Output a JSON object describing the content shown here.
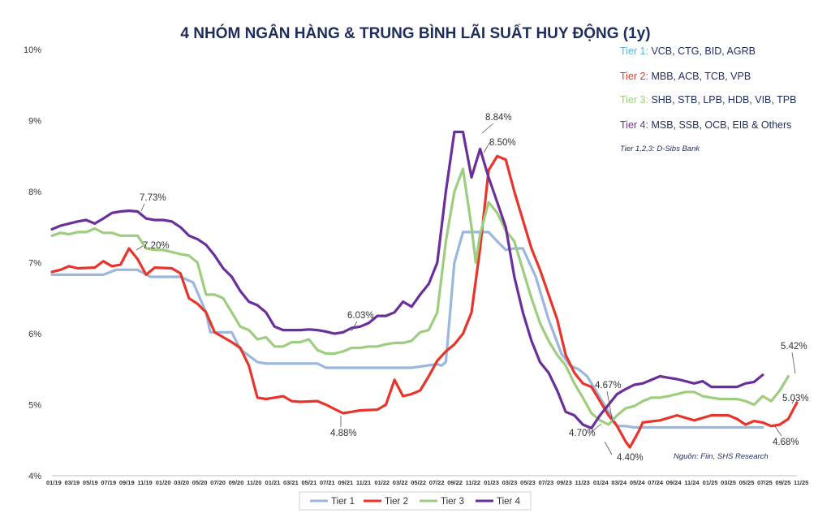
{
  "chart_data": {
    "type": "line",
    "title": "4 NHÓM NGÂN HÀNG & TRUNG BÌNH LÃI SUẤT HUY ĐỘNG (1y)",
    "xlabel": "",
    "ylabel": "",
    "ylim": [
      4,
      10
    ],
    "yticks": [
      "4%",
      "5%",
      "6%",
      "7%",
      "8%",
      "9%",
      "10%"
    ],
    "ytick_values": [
      4,
      5,
      6,
      7,
      8,
      9,
      10
    ],
    "x_tick_labels": [
      "01/19",
      "03/19",
      "05/19",
      "07/19",
      "09/19",
      "11/19",
      "01/20",
      "03/20",
      "05/20",
      "07/20",
      "09/20",
      "11/20",
      "01/21",
      "03/21",
      "05/21",
      "07/21",
      "09/21",
      "11/21",
      "01/22",
      "03/22",
      "05/22",
      "07/22",
      "09/22",
      "11/22",
      "01/23",
      "03/23",
      "05/23",
      "07/23",
      "09/23",
      "11/23",
      "01/24",
      "03/24",
      "05/24",
      "07/24",
      "09/24",
      "11/24",
      "01/25",
      "03/25",
      "05/25",
      "07/25",
      "09/25",
      "11/25"
    ],
    "x_range": [
      0,
      83
    ],
    "series": [
      {
        "name": "Tier 1",
        "color": "#9ab8de",
        "points": [
          [
            0,
            6.83
          ],
          [
            6,
            6.83
          ],
          [
            7.5,
            6.9
          ],
          [
            10,
            6.9
          ],
          [
            11.5,
            6.8
          ],
          [
            15,
            6.8
          ],
          [
            16.5,
            6.72
          ],
          [
            18,
            6.3
          ],
          [
            18.5,
            6.02
          ],
          [
            21,
            6.02
          ],
          [
            22,
            5.78
          ],
          [
            24,
            5.6
          ],
          [
            25,
            5.58
          ],
          [
            31,
            5.58
          ],
          [
            32,
            5.52
          ],
          [
            42,
            5.52
          ],
          [
            45,
            5.57
          ],
          [
            45.5,
            5.55
          ],
          [
            46,
            5.6
          ],
          [
            47,
            7.0
          ],
          [
            48,
            7.43
          ],
          [
            51,
            7.43
          ],
          [
            52,
            7.3
          ],
          [
            53,
            7.18
          ],
          [
            54,
            7.2
          ],
          [
            55,
            7.2
          ],
          [
            56.5,
            6.8
          ],
          [
            58,
            6.2
          ],
          [
            59.5,
            5.72
          ],
          [
            60.5,
            5.55
          ],
          [
            61.5,
            5.5
          ],
          [
            62.5,
            5.4
          ],
          [
            63.5,
            5.2
          ],
          [
            64.5,
            5.0
          ],
          [
            65.5,
            4.8
          ],
          [
            66,
            4.7
          ],
          [
            67,
            4.7
          ],
          [
            68,
            4.68
          ],
          [
            83,
            4.68
          ]
        ]
      },
      {
        "name": "Tier 2",
        "color": "#e8342a",
        "points": [
          [
            0,
            6.87
          ],
          [
            1,
            6.9
          ],
          [
            2,
            6.95
          ],
          [
            3,
            6.92
          ],
          [
            5,
            6.93
          ],
          [
            6,
            7.02
          ],
          [
            7,
            6.95
          ],
          [
            8,
            6.97
          ],
          [
            9,
            7.2
          ],
          [
            10,
            7.05
          ],
          [
            11,
            6.83
          ],
          [
            12,
            6.93
          ],
          [
            14,
            6.92
          ],
          [
            15,
            6.85
          ],
          [
            16,
            6.5
          ],
          [
            17,
            6.42
          ],
          [
            18,
            6.3
          ],
          [
            19,
            6.02
          ],
          [
            20,
            5.95
          ],
          [
            21,
            5.88
          ],
          [
            22,
            5.8
          ],
          [
            23,
            5.55
          ],
          [
            24,
            5.1
          ],
          [
            25,
            5.08
          ],
          [
            26,
            5.1
          ],
          [
            27,
            5.12
          ],
          [
            28,
            5.05
          ],
          [
            29,
            5.04
          ],
          [
            31,
            5.05
          ],
          [
            32,
            5.0
          ],
          [
            33,
            4.94
          ],
          [
            34,
            4.88
          ],
          [
            35,
            4.9
          ],
          [
            36,
            4.92
          ],
          [
            38,
            4.93
          ],
          [
            39,
            5.0
          ],
          [
            40,
            5.35
          ],
          [
            41,
            5.12
          ],
          [
            42,
            5.15
          ],
          [
            43,
            5.2
          ],
          [
            44,
            5.4
          ],
          [
            45,
            5.62
          ],
          [
            46,
            5.75
          ],
          [
            47,
            5.85
          ],
          [
            48,
            6.0
          ],
          [
            49,
            6.3
          ],
          [
            50,
            7.2
          ],
          [
            51,
            8.3
          ],
          [
            52,
            8.5
          ],
          [
            53,
            8.45
          ],
          [
            54,
            8.0
          ],
          [
            55,
            7.6
          ],
          [
            56,
            7.2
          ],
          [
            57,
            6.9
          ],
          [
            58,
            6.55
          ],
          [
            59,
            6.2
          ],
          [
            60,
            5.7
          ],
          [
            61,
            5.45
          ],
          [
            62,
            5.3
          ],
          [
            63,
            5.25
          ],
          [
            64,
            5.05
          ],
          [
            65,
            4.85
          ],
          [
            66,
            4.7
          ],
          [
            67,
            4.48
          ],
          [
            67.5,
            4.4
          ],
          [
            68.5,
            4.62
          ],
          [
            69,
            4.75
          ],
          [
            71,
            4.78
          ],
          [
            73,
            4.85
          ],
          [
            75,
            4.78
          ],
          [
            77,
            4.85
          ],
          [
            79,
            4.85
          ],
          [
            80,
            4.8
          ],
          [
            81,
            4.72
          ],
          [
            82,
            4.77
          ],
          [
            83,
            4.75
          ],
          [
            84,
            4.7
          ],
          [
            85,
            4.72
          ],
          [
            86,
            4.8
          ],
          [
            87,
            5.03
          ]
        ]
      },
      {
        "name": "Tier 3",
        "color": "#9fcd7f",
        "points": [
          [
            0,
            7.38
          ],
          [
            1,
            7.42
          ],
          [
            2,
            7.4
          ],
          [
            3,
            7.43
          ],
          [
            4,
            7.43
          ],
          [
            5,
            7.48
          ],
          [
            6,
            7.42
          ],
          [
            7,
            7.42
          ],
          [
            8,
            7.38
          ],
          [
            9,
            7.38
          ],
          [
            10,
            7.38
          ],
          [
            11,
            7.2
          ],
          [
            12,
            7.18
          ],
          [
            13,
            7.18
          ],
          [
            14,
            7.15
          ],
          [
            15,
            7.12
          ],
          [
            16,
            7.1
          ],
          [
            17,
            7.0
          ],
          [
            18,
            6.55
          ],
          [
            19,
            6.55
          ],
          [
            20,
            6.5
          ],
          [
            21,
            6.3
          ],
          [
            22,
            6.1
          ],
          [
            23,
            6.05
          ],
          [
            24,
            5.92
          ],
          [
            25,
            5.95
          ],
          [
            26,
            5.82
          ],
          [
            27,
            5.82
          ],
          [
            28,
            5.88
          ],
          [
            29,
            5.88
          ],
          [
            30,
            5.92
          ],
          [
            31,
            5.77
          ],
          [
            32,
            5.72
          ],
          [
            33,
            5.72
          ],
          [
            34,
            5.75
          ],
          [
            35,
            5.8
          ],
          [
            36,
            5.8
          ],
          [
            37,
            5.82
          ],
          [
            38,
            5.82
          ],
          [
            39,
            5.85
          ],
          [
            40,
            5.87
          ],
          [
            41,
            5.87
          ],
          [
            42,
            5.9
          ],
          [
            43,
            6.02
          ],
          [
            44,
            6.05
          ],
          [
            45,
            6.3
          ],
          [
            46,
            7.3
          ],
          [
            47,
            8.0
          ],
          [
            48,
            8.32
          ],
          [
            49,
            7.5
          ],
          [
            49.5,
            7.0
          ],
          [
            50,
            7.4
          ],
          [
            51,
            7.85
          ],
          [
            52,
            7.7
          ],
          [
            53,
            7.45
          ],
          [
            54,
            7.3
          ],
          [
            55,
            6.9
          ],
          [
            56,
            6.5
          ],
          [
            57,
            6.15
          ],
          [
            58,
            5.9
          ],
          [
            59,
            5.7
          ],
          [
            60,
            5.55
          ],
          [
            61,
            5.3
          ],
          [
            62,
            5.1
          ],
          [
            63,
            4.88
          ],
          [
            64,
            4.78
          ],
          [
            65,
            4.72
          ],
          [
            66,
            4.85
          ],
          [
            67,
            4.95
          ],
          [
            68,
            4.98
          ],
          [
            69,
            5.05
          ],
          [
            70,
            5.1
          ],
          [
            71,
            5.1
          ],
          [
            72,
            5.12
          ],
          [
            73,
            5.15
          ],
          [
            74,
            5.18
          ],
          [
            75,
            5.18
          ],
          [
            76,
            5.12
          ],
          [
            77,
            5.1
          ],
          [
            78,
            5.08
          ],
          [
            79,
            5.08
          ],
          [
            80,
            5.08
          ],
          [
            81,
            5.05
          ],
          [
            82,
            5.0
          ],
          [
            83,
            5.12
          ],
          [
            84,
            5.05
          ],
          [
            85,
            5.2
          ],
          [
            86,
            5.4
          ]
        ]
      },
      {
        "name": "Tier 4",
        "color": "#6a2f9b",
        "points": [
          [
            0,
            7.47
          ],
          [
            1,
            7.52
          ],
          [
            2,
            7.55
          ],
          [
            3,
            7.58
          ],
          [
            4,
            7.6
          ],
          [
            5,
            7.55
          ],
          [
            6,
            7.62
          ],
          [
            7,
            7.7
          ],
          [
            8,
            7.72
          ],
          [
            9,
            7.73
          ],
          [
            10,
            7.72
          ],
          [
            11,
            7.62
          ],
          [
            12,
            7.6
          ],
          [
            13,
            7.6
          ],
          [
            14,
            7.58
          ],
          [
            15,
            7.5
          ],
          [
            16,
            7.38
          ],
          [
            17,
            7.33
          ],
          [
            18,
            7.25
          ],
          [
            19,
            7.1
          ],
          [
            20,
            6.92
          ],
          [
            21,
            6.8
          ],
          [
            22,
            6.6
          ],
          [
            23,
            6.45
          ],
          [
            24,
            6.4
          ],
          [
            25,
            6.3
          ],
          [
            26,
            6.1
          ],
          [
            27,
            6.05
          ],
          [
            28,
            6.05
          ],
          [
            29,
            6.05
          ],
          [
            30,
            6.06
          ],
          [
            31,
            6.05
          ],
          [
            32,
            6.03
          ],
          [
            33,
            6.0
          ],
          [
            34,
            6.02
          ],
          [
            35,
            6.08
          ],
          [
            36,
            6.1
          ],
          [
            37,
            6.15
          ],
          [
            38,
            6.25
          ],
          [
            39,
            6.25
          ],
          [
            40,
            6.3
          ],
          [
            41,
            6.45
          ],
          [
            42,
            6.38
          ],
          [
            43,
            6.55
          ],
          [
            44,
            6.7
          ],
          [
            45,
            7.0
          ],
          [
            46,
            8.0
          ],
          [
            47,
            8.84
          ],
          [
            48,
            8.84
          ],
          [
            49,
            8.2
          ],
          [
            50,
            8.6
          ],
          [
            51,
            8.2
          ],
          [
            52,
            7.85
          ],
          [
            53,
            7.5
          ],
          [
            54,
            6.8
          ],
          [
            55,
            6.3
          ],
          [
            56,
            5.9
          ],
          [
            57,
            5.6
          ],
          [
            58,
            5.45
          ],
          [
            59,
            5.2
          ],
          [
            60,
            4.9
          ],
          [
            61,
            4.85
          ],
          [
            62,
            4.72
          ],
          [
            63,
            4.67
          ],
          [
            64,
            4.85
          ],
          [
            65,
            5.0
          ],
          [
            66,
            5.15
          ],
          [
            67,
            5.22
          ],
          [
            68,
            5.28
          ],
          [
            69,
            5.3
          ],
          [
            70,
            5.35
          ],
          [
            71,
            5.4
          ],
          [
            72,
            5.38
          ],
          [
            73,
            5.36
          ],
          [
            74,
            5.33
          ],
          [
            75,
            5.3
          ],
          [
            76,
            5.33
          ],
          [
            77,
            5.25
          ],
          [
            78,
            5.25
          ],
          [
            79,
            5.25
          ],
          [
            80,
            5.25
          ],
          [
            81,
            5.3
          ],
          [
            82,
            5.32
          ],
          [
            83,
            5.42
          ]
        ]
      }
    ],
    "annotations": [
      {
        "text": "7.73%",
        "series": "Tier 4"
      },
      {
        "text": "7.20%",
        "series": "Tier 2"
      },
      {
        "text": "6.03%",
        "series": "Tier 4"
      },
      {
        "text": "4.88%",
        "series": "Tier 2"
      },
      {
        "text": "8.84%",
        "series": "Tier 4"
      },
      {
        "text": "8.50%",
        "series": "Tier 2"
      },
      {
        "text": "4.67%",
        "series": "Tier 4"
      },
      {
        "text": "4.70%",
        "series": "Tier 1"
      },
      {
        "text": "4.40%",
        "series": "Tier 2"
      },
      {
        "text": "5.42%",
        "series": "Tier 4"
      },
      {
        "text": "5.03%",
        "series": "Tier 2"
      },
      {
        "text": "4.68%",
        "series": "Tier 1"
      }
    ],
    "tier_info": [
      {
        "prefix": "Tier 1:",
        "members": "VCB, CTG, BID, AGRB",
        "color": "#5bb0dc"
      },
      {
        "prefix": "Tier 2:",
        "members": "MBB, ACB, TCB, VPB",
        "color": "#e8342a"
      },
      {
        "prefix": "Tier 3:",
        "members": "SHB, STB, LPB, HDB, VIB, TPB",
        "color": "#9fcd7f"
      },
      {
        "prefix": "Tier 4:",
        "members": "MSB, SSB, OCB, EIB & Others",
        "color": "#6a2f9b"
      }
    ],
    "note": "Tier 1,2,3: D-Sibs Bank",
    "source": "Nguồn: Fiin, SHS Research",
    "legend": [
      "Tier 1",
      "Tier 2",
      "Tier 3",
      "Tier 4"
    ],
    "legend_position": "bottom",
    "grid": false
  }
}
